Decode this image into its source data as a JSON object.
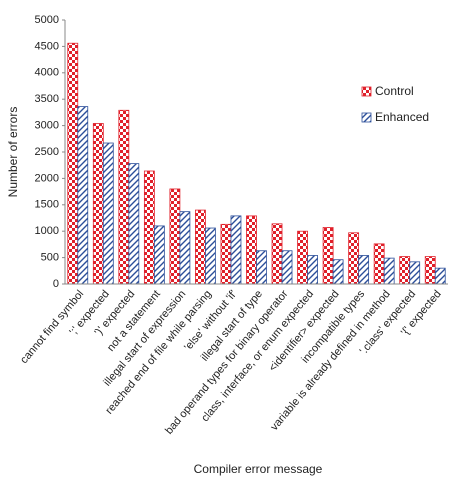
{
  "chart_data": {
    "type": "bar",
    "x_label": "Compiler error message",
    "y_label": "Number of errors",
    "categories": [
      "cannot find symbol",
      "';' expected",
      "')' expected",
      "not a statement",
      "illegal start of expression",
      "reached end of file while parsing",
      "'else' without 'if'",
      "illegal start of type",
      "bad operand types for binary operator",
      "class, interface, or enum expected",
      "<identifier> expected",
      "incompatible types",
      "variable is already defined in method",
      "'.class' expected",
      "'{' expected"
    ],
    "series": [
      {
        "name": "Control",
        "color": "#e0202a",
        "values": [
          4560,
          3040,
          3290,
          2140,
          1800,
          1400,
          1130,
          1290,
          1140,
          1000,
          1070,
          970,
          760,
          520,
          520
        ]
      },
      {
        "name": "Enhanced",
        "color": "#2c4f9a",
        "values": [
          3360,
          2670,
          2280,
          1100,
          1370,
          1060,
          1290,
          630,
          630,
          540,
          460,
          540,
          490,
          420,
          300
        ]
      }
    ],
    "ylim": [
      0,
      5000
    ],
    "yticks": [
      0,
      500,
      1000,
      1500,
      2000,
      2500,
      3000,
      3500,
      4000,
      4500,
      5000
    ],
    "grid": false,
    "legend": "right"
  }
}
